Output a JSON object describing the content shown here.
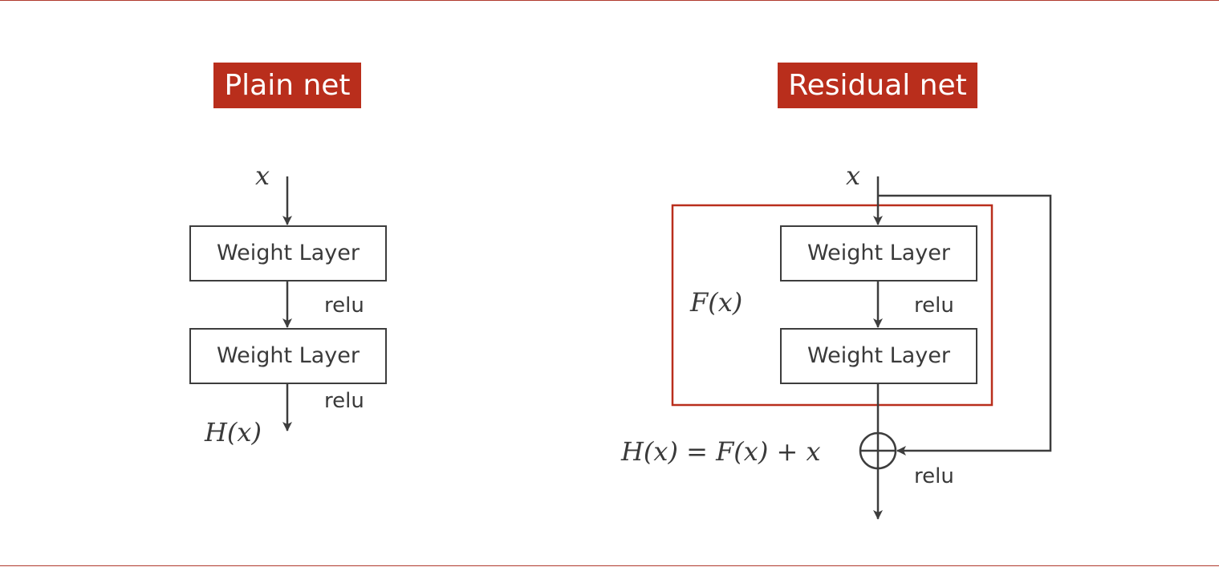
{
  "plain": {
    "title": "Plain net",
    "input": "x",
    "layers": [
      "Weight Layer",
      "Weight Layer"
    ],
    "activations": [
      "relu",
      "relu"
    ],
    "output": "H(x)"
  },
  "residual": {
    "title": "Residual net",
    "input": "x",
    "layers": [
      "Weight Layer",
      "Weight Layer"
    ],
    "activations": [
      "relu",
      "relu"
    ],
    "block_label": "F(x)",
    "output_equation": "H(x) = F(x) + x"
  },
  "colors": {
    "accent": "#b92e1c",
    "rule": "#b03a2e",
    "line": "#3d3d3d"
  }
}
